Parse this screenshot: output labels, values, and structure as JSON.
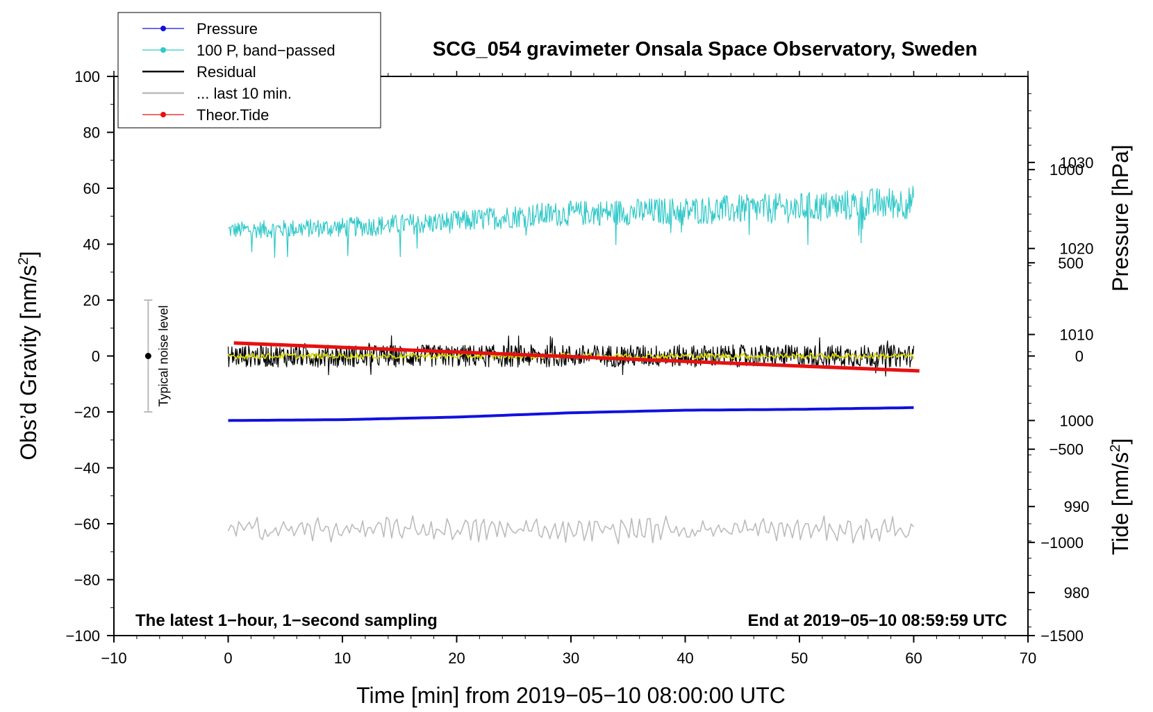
{
  "chart_data": {
    "type": "line",
    "title": "SCG_054 gravimeter Onsala Space Observatory, Sweden",
    "xlabel": "Time [min] from 2019−05−10 08:00:00 UTC",
    "ylabel_left": "Obs’d Gravity [nm/s",
    "ylabel_left_sup": "2",
    "ylabel_left_tail": "]",
    "ylabel_right_pressure": "Pressure [hPa]",
    "ylabel_right_tide": "Tide [nm/s",
    "ylabel_right_tide_sup": "2",
    "ylabel_right_tide_tail": "]",
    "xlim": [
      -10,
      70
    ],
    "ylim_left": [
      -100,
      100
    ],
    "pressure_lim": [
      975,
      1040
    ],
    "tide_lim": [
      -1500,
      1500
    ],
    "x_ticks": [
      -10,
      0,
      10,
      20,
      30,
      40,
      50,
      60,
      70
    ],
    "x_tick_labels": [
      "−10",
      "0",
      "10",
      "20",
      "30",
      "40",
      "50",
      "60",
      "70"
    ],
    "y_left_ticks": [
      -100,
      -80,
      -60,
      -40,
      -20,
      0,
      20,
      40,
      60,
      80,
      100
    ],
    "y_left_tick_labels": [
      "−100",
      "−80",
      "−60",
      "−40",
      "−20",
      "0",
      "20",
      "40",
      "60",
      "80",
      "100"
    ],
    "pressure_ticks": [
      980,
      990,
      1000,
      1010,
      1020,
      1030
    ],
    "pressure_tick_labels": [
      "980",
      "990",
      "1000",
      "1010",
      "1020",
      "1030"
    ],
    "tide_ticks": [
      -1500,
      -1000,
      -500,
      0,
      500,
      1000
    ],
    "tide_tick_labels": [
      "−1500",
      "−1000",
      "−500",
      "0",
      "500",
      "1000"
    ],
    "legend": {
      "position": "top-left",
      "entries": [
        {
          "label": "Pressure",
          "color": "#1010e0",
          "marker": true
        },
        {
          "label": "100 P, band−passed",
          "color": "#30c8c8",
          "marker": true
        },
        {
          "label": "Residual",
          "color": "#000000",
          "marker": false
        },
        {
          "label": "... last 10 min.",
          "color": "#bbbbbb",
          "marker": false
        },
        {
          "label": "Theor.Tide",
          "color": "#e81010",
          "marker": true
        }
      ]
    },
    "series": [
      {
        "name": "Pressure",
        "axis": "pressure",
        "color": "#1010e0",
        "x": [
          0,
          10,
          20,
          30,
          40,
          50,
          60
        ],
        "y": [
          1000.0,
          1000.1,
          1000.4,
          1000.9,
          1001.2,
          1001.3,
          1001.5
        ]
      },
      {
        "name": "100 P, band−passed",
        "axis": "left",
        "color": "#30c8c8",
        "x": [
          0,
          10,
          20,
          25,
          30,
          40,
          50,
          60
        ],
        "y": [
          45,
          46,
          48,
          50,
          51,
          52,
          53,
          55
        ],
        "noise_amplitude": 5
      },
      {
        "name": "Residual",
        "axis": "left",
        "color": "#000000",
        "x": [
          0,
          60
        ],
        "y": [
          0,
          0
        ],
        "noise_amplitude": 4
      },
      {
        "name": "Residual smoothed",
        "axis": "left",
        "color": "#d8d800",
        "x": [
          0,
          60
        ],
        "y": [
          0,
          0
        ],
        "noise_amplitude": 1
      },
      {
        "name": "... last 10 min.",
        "axis": "left",
        "color": "#bbbbbb",
        "x": [
          0,
          60
        ],
        "y": [
          -62,
          -62
        ],
        "noise_amplitude": 4
      },
      {
        "name": "Theor.Tide",
        "axis": "tide",
        "color": "#e81010",
        "x": [
          0.5,
          60.5
        ],
        "y": [
          70,
          -80
        ]
      }
    ],
    "noise_bar": {
      "x": -7,
      "center": 0,
      "low": -20,
      "high": 20,
      "label": "Typical noise level"
    },
    "annotations": {
      "bottom_left": "The latest 1−hour, 1−second sampling",
      "bottom_right": "End at 2019−05−10 08:59:59 UTC"
    }
  }
}
